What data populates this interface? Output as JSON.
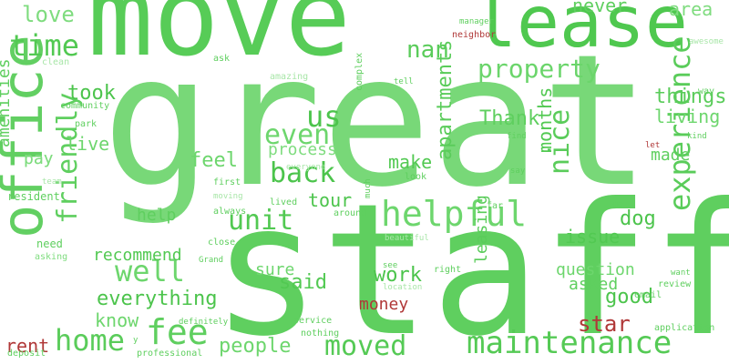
{
  "colors": {
    "green_1": "#5fcf5f",
    "green_2": "#6dd66d",
    "green_3": "#7fdc7f",
    "green_4": "#4cc44c",
    "green_light": "#a8e6a8",
    "red": "#b03838",
    "background": "#ffffff"
  },
  "words": [
    {
      "text": "move",
      "color": "#57cc57"
    },
    {
      "text": "great",
      "color": "#78d878"
    },
    {
      "text": "staff",
      "color": "#5fcf5f"
    },
    {
      "text": "lease",
      "color": "#4fc84f"
    },
    {
      "text": "office",
      "color": "#62cf62"
    },
    {
      "text": "maintenance",
      "color": "#55ca55"
    },
    {
      "text": "helpful",
      "color": "#6dd66d"
    },
    {
      "text": "property",
      "color": "#6bd56b"
    },
    {
      "text": "experience",
      "color": "#5acc5a"
    },
    {
      "text": "friendly",
      "color": "#5fcf5f"
    },
    {
      "text": "back",
      "color": "#4cc44c"
    },
    {
      "text": "unit",
      "color": "#52c952"
    },
    {
      "text": "well",
      "color": "#6dd66d"
    },
    {
      "text": "home",
      "color": "#5acc5a"
    },
    {
      "text": "fee",
      "color": "#5fcf5f"
    },
    {
      "text": "moved",
      "color": "#55ca55"
    },
    {
      "text": "time",
      "color": "#52c952"
    },
    {
      "text": "love",
      "color": "#7fdc7f"
    },
    {
      "text": "us",
      "color": "#4cc44c"
    },
    {
      "text": "even",
      "color": "#6dd66d"
    },
    {
      "text": "nan",
      "color": "#5acc5a"
    },
    {
      "text": "never",
      "color": "#5fcf5f"
    },
    {
      "text": "area",
      "color": "#7fdc7f"
    },
    {
      "text": "things",
      "color": "#5acc5a"
    },
    {
      "text": "took",
      "color": "#4cc44c"
    },
    {
      "text": "Thank",
      "color": "#5fcf5f"
    },
    {
      "text": "living",
      "color": "#6dd66d"
    },
    {
      "text": "nice",
      "color": "#5acc5a"
    },
    {
      "text": "months",
      "color": "#52c952"
    },
    {
      "text": "made",
      "color": "#5fcf5f"
    },
    {
      "text": "apartments",
      "color": "#5acc5a"
    },
    {
      "text": "feel",
      "color": "#6dd66d"
    },
    {
      "text": "make",
      "color": "#52c952"
    },
    {
      "text": "process",
      "color": "#7fdc7f"
    },
    {
      "text": "tour",
      "color": "#4cc44c"
    },
    {
      "text": "live",
      "color": "#6dd66d"
    },
    {
      "text": "pay",
      "color": "#7fdc7f"
    },
    {
      "text": "amenities",
      "color": "#5fcf5f"
    },
    {
      "text": "recommend",
      "color": "#52c952"
    },
    {
      "text": "help",
      "color": "#5fcf5f"
    },
    {
      "text": "dog",
      "color": "#4cc44c"
    },
    {
      "text": "issue",
      "color": "#52c952"
    },
    {
      "text": "everything",
      "color": "#4cc44c"
    },
    {
      "text": "know",
      "color": "#6dd66d"
    },
    {
      "text": "said",
      "color": "#52c952"
    },
    {
      "text": "work",
      "color": "#4cc44c"
    },
    {
      "text": "leasing",
      "color": "#5acc5a"
    },
    {
      "text": "question",
      "color": "#6dd66d"
    },
    {
      "text": "asked",
      "color": "#5fcf5f"
    },
    {
      "text": "good",
      "color": "#4cc44c"
    },
    {
      "text": "sure",
      "color": "#6dd66d"
    },
    {
      "text": "people",
      "color": "#6dd66d"
    },
    {
      "text": "money",
      "color": "#b03838"
    },
    {
      "text": "star",
      "color": "#b03838"
    },
    {
      "text": "rent",
      "color": "#b03838"
    },
    {
      "text": "pay",
      "color": "#7fdc7f"
    },
    {
      "text": "resident",
      "color": "#5fcf5f"
    },
    {
      "text": "need",
      "color": "#5fcf5f"
    },
    {
      "text": "asking",
      "color": "#7fdc7f"
    },
    {
      "text": "deposit",
      "color": "#5fcf5f"
    },
    {
      "text": "clean",
      "color": "#a8e6a8"
    },
    {
      "text": "community",
      "color": "#5fcf5f"
    },
    {
      "text": "team",
      "color": "#a8e6a8"
    },
    {
      "text": "ask",
      "color": "#5fcf5f"
    },
    {
      "text": "amazing",
      "color": "#a8e6a8"
    },
    {
      "text": "park",
      "color": "#5fcf5f"
    },
    {
      "text": "everyone",
      "color": "#a8e6a8"
    },
    {
      "text": "first",
      "color": "#5fcf5f"
    },
    {
      "text": "moving",
      "color": "#a8e6a8"
    },
    {
      "text": "always",
      "color": "#5fcf5f"
    },
    {
      "text": "lived",
      "color": "#5fcf5f"
    },
    {
      "text": "around",
      "color": "#5fcf5f"
    },
    {
      "text": "much",
      "color": "#5fcf5f"
    },
    {
      "text": "close",
      "color": "#5fcf5f"
    },
    {
      "text": "Grand",
      "color": "#5fcf5f"
    },
    {
      "text": "definitely",
      "color": "#5fcf5f"
    },
    {
      "text": "professional",
      "color": "#5fcf5f"
    },
    {
      "text": "service",
      "color": "#5fcf5f"
    },
    {
      "text": "nothing",
      "color": "#5fcf5f"
    },
    {
      "text": "see",
      "color": "#5fcf5f"
    },
    {
      "text": "location",
      "color": "#a8e6a8"
    },
    {
      "text": "beautiful",
      "color": "#a8e6a8"
    },
    {
      "text": "right",
      "color": "#5fcf5f"
    },
    {
      "text": "far",
      "color": "#5fcf5f"
    },
    {
      "text": "look",
      "color": "#5fcf5f"
    },
    {
      "text": "say",
      "color": "#5fcf5f"
    },
    {
      "text": "find",
      "color": "#5fcf5f"
    },
    {
      "text": "tell",
      "color": "#5fcf5f"
    },
    {
      "text": "complex",
      "color": "#5fcf5f"
    },
    {
      "text": "manager",
      "color": "#5fcf5f"
    },
    {
      "text": "neighbor",
      "color": "#b03838"
    },
    {
      "text": "awesome",
      "color": "#a8e6a8"
    },
    {
      "text": "way",
      "color": "#5fcf5f"
    },
    {
      "text": "kind",
      "color": "#5fcf5f"
    },
    {
      "text": "let",
      "color": "#b03838"
    },
    {
      "text": "go",
      "color": "#5fcf5f"
    },
    {
      "text": "want",
      "color": "#5fcf5f"
    },
    {
      "text": "review",
      "color": "#5fcf5f"
    },
    {
      "text": "email",
      "color": "#5fcf5f"
    },
    {
      "text": "application",
      "color": "#5fcf5f"
    },
    {
      "text": "y",
      "color": "#5fcf5f"
    }
  ]
}
